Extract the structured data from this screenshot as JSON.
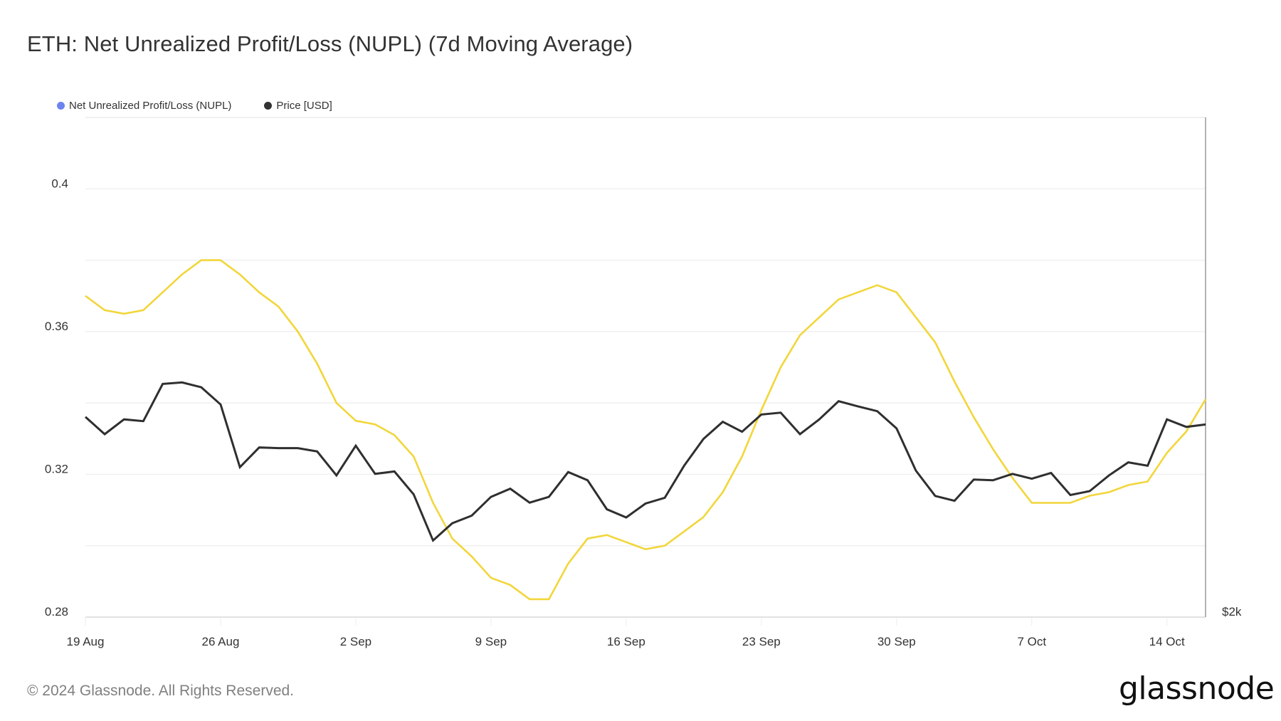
{
  "title": "ETH: Net Unrealized Profit/Loss (NUPL) (7d Moving Average)",
  "footer": "© 2024 Glassnode. All Rights Reserved.",
  "logo_text": "glassnode",
  "legend": [
    {
      "label": "Net Unrealized Profit/Loss (NUPL)",
      "color": "#6b84f0"
    },
    {
      "label": "Price [USD]",
      "color": "#333333"
    }
  ],
  "chart_data": {
    "type": "line",
    "title": "ETH: Net Unrealized Profit/Loss (NUPL) (7d Moving Average)",
    "x_start": "2024-08-19",
    "x_step": "1 day",
    "x_tick_labels": [
      "19 Aug",
      "26 Aug",
      "2 Sep",
      "9 Sep",
      "16 Sep",
      "23 Sep",
      "30 Sep",
      "7 Oct",
      "14 Oct"
    ],
    "y_left": {
      "ylim": [
        0.28,
        0.42
      ],
      "tick_labels": [
        "0.28",
        "0.32",
        "0.36",
        "0.4"
      ],
      "ticks": [
        0.28,
        0.32,
        0.36,
        0.4
      ],
      "grid_step": 0.02
    },
    "y_right": {
      "ylim": [
        2000,
        3650
      ],
      "tick_labels": [
        "$2k"
      ],
      "scale": "linear"
    },
    "grid": true,
    "legend_position": "top-left",
    "series": [
      {
        "name": "Net Unrealized Profit/Loss (NUPL)",
        "axis": "left",
        "color": "#f2d63b",
        "values": [
          0.37,
          0.366,
          0.365,
          0.366,
          0.371,
          0.376,
          0.38,
          0.38,
          0.376,
          0.371,
          0.367,
          0.36,
          0.351,
          0.34,
          0.335,
          0.334,
          0.331,
          0.325,
          0.312,
          0.302,
          0.297,
          0.291,
          0.289,
          0.285,
          0.285,
          0.295,
          0.302,
          0.303,
          0.301,
          0.299,
          0.3,
          0.304,
          0.308,
          0.315,
          0.325,
          0.338,
          0.35,
          0.359,
          0.364,
          0.369,
          0.371,
          0.373,
          0.371,
          0.364,
          0.357,
          0.346,
          0.336,
          0.327,
          0.319,
          0.312,
          0.312,
          0.312,
          0.314,
          0.315,
          0.317,
          0.318,
          0.326,
          0.332,
          0.341
        ]
      },
      {
        "name": "Price [USD]",
        "axis": "right",
        "color": "#2f2f2f",
        "values": [
          2661,
          2604,
          2653,
          2647,
          2770,
          2775,
          2759,
          2702,
          2495,
          2560,
          2558,
          2558,
          2547,
          2468,
          2566,
          2473,
          2481,
          2405,
          2253,
          2310,
          2335,
          2397,
          2424,
          2378,
          2397,
          2479,
          2452,
          2356,
          2329,
          2375,
          2394,
          2500,
          2588,
          2645,
          2612,
          2669,
          2675,
          2604,
          2653,
          2713,
          2696,
          2680,
          2623,
          2484,
          2400,
          2384,
          2454,
          2452,
          2473,
          2457,
          2476,
          2403,
          2416,
          2468,
          2511,
          2500,
          2653,
          2628,
          2636
        ]
      }
    ]
  }
}
